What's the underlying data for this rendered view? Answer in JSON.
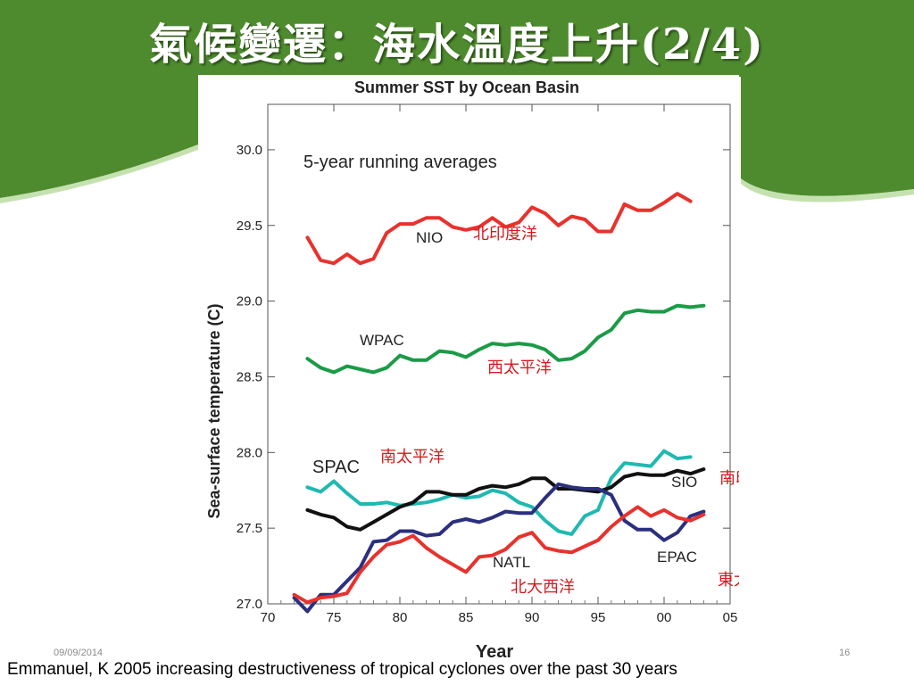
{
  "slide": {
    "title": "氣候變遷：海水溫度上升(2/4)",
    "date": "09/09/2014",
    "page_number": "16",
    "citation": "Emmanuel, K 2005 increasing destructiveness of tropical cyclones over the past 30 years",
    "colors": {
      "banner_green": "#4e8b2e",
      "title_text": "#ffffff"
    }
  },
  "chart_data": {
    "type": "line",
    "title": "Summer SST by Ocean Basin",
    "subtitle": "5-year running averages",
    "xlabel": "Year",
    "ylabel": "Sea-surface temperature (C)",
    "xlim": [
      1970,
      2005
    ],
    "ylim": [
      27.0,
      30.3
    ],
    "x_ticks": [
      1970,
      1975,
      1980,
      1985,
      1990,
      1995,
      2000,
      2005
    ],
    "x_tick_labels": [
      "70",
      "75",
      "80",
      "85",
      "90",
      "95",
      "00",
      "05"
    ],
    "y_ticks": [
      27.0,
      27.5,
      28.0,
      28.5,
      29.0,
      29.5,
      30.0
    ],
    "y_tick_labels": [
      "27.0",
      "27.5",
      "28.0",
      "28.5",
      "29.0",
      "29.5",
      "30.0"
    ],
    "grid": false,
    "series": [
      {
        "name": "NIO",
        "chinese_label": "北印度洋",
        "color": "#e8322d",
        "x": [
          1973,
          1974,
          1975,
          1976,
          1977,
          1978,
          1979,
          1980,
          1981,
          1982,
          1983,
          1984,
          1985,
          1986,
          1987,
          1988,
          1989,
          1990,
          1991,
          1992,
          1993,
          1994,
          1995,
          1996,
          1997,
          1998,
          1999,
          2000,
          2001,
          2002
        ],
        "y": [
          29.42,
          29.27,
          29.25,
          29.31,
          29.25,
          29.28,
          29.45,
          29.51,
          29.51,
          29.55,
          29.55,
          29.49,
          29.47,
          29.49,
          29.55,
          29.49,
          29.52,
          29.62,
          29.58,
          29.5,
          29.56,
          29.54,
          29.46,
          29.46,
          29.64,
          29.6,
          29.6,
          29.65,
          29.71,
          29.66
        ]
      },
      {
        "name": "WPAC",
        "chinese_label": "西太平洋",
        "color": "#1a9b46",
        "x": [
          1973,
          1974,
          1975,
          1976,
          1977,
          1978,
          1979,
          1980,
          1981,
          1982,
          1983,
          1984,
          1985,
          1986,
          1987,
          1988,
          1989,
          1990,
          1991,
          1992,
          1993,
          1994,
          1995,
          1996,
          1997,
          1998,
          1999,
          2000,
          2001,
          2002,
          2003
        ],
        "y": [
          28.62,
          28.56,
          28.53,
          28.57,
          28.55,
          28.53,
          28.56,
          28.64,
          28.61,
          28.61,
          28.67,
          28.66,
          28.63,
          28.68,
          28.72,
          28.71,
          28.72,
          28.71,
          28.68,
          28.61,
          28.62,
          28.67,
          28.76,
          28.81,
          28.92,
          28.94,
          28.93,
          28.93,
          28.97,
          28.96,
          28.97
        ]
      },
      {
        "name": "SPAC",
        "chinese_label": "南太平洋",
        "color": "#1fb9b1",
        "x": [
          1973,
          1974,
          1975,
          1976,
          1977,
          1978,
          1979,
          1980,
          1981,
          1982,
          1983,
          1984,
          1985,
          1986,
          1987,
          1988,
          1989,
          1990,
          1991,
          1992,
          1993,
          1994,
          1995,
          1996,
          1997,
          1998,
          1999,
          2000,
          2001,
          2002
        ],
        "y": [
          27.77,
          27.74,
          27.81,
          27.73,
          27.66,
          27.66,
          27.67,
          27.65,
          27.66,
          27.67,
          27.69,
          27.72,
          27.7,
          27.71,
          27.75,
          27.73,
          27.67,
          27.64,
          27.55,
          27.48,
          27.46,
          27.58,
          27.62,
          27.83,
          27.93,
          27.92,
          27.91,
          28.01,
          27.96,
          27.97
        ]
      },
      {
        "name": "SIO",
        "chinese_label": "南印度洋",
        "color": "#111111",
        "x": [
          1973,
          1974,
          1975,
          1976,
          1977,
          1978,
          1979,
          1980,
          1981,
          1982,
          1983,
          1984,
          1985,
          1986,
          1987,
          1988,
          1989,
          1990,
          1991,
          1992,
          1993,
          1994,
          1995,
          1996,
          1997,
          1998,
          1999,
          2000,
          2001,
          2002,
          2003
        ],
        "y": [
          27.62,
          27.59,
          27.57,
          27.51,
          27.49,
          27.54,
          27.59,
          27.64,
          27.67,
          27.74,
          27.74,
          27.72,
          27.72,
          27.76,
          27.78,
          27.77,
          27.79,
          27.83,
          27.83,
          27.76,
          27.76,
          27.75,
          27.74,
          27.77,
          27.84,
          27.86,
          27.85,
          27.85,
          27.88,
          27.86,
          27.89
        ]
      },
      {
        "name": "EPAC",
        "chinese_label": "東太平洋",
        "color": "#2b2f7e",
        "x": [
          1972,
          1973,
          1974,
          1975,
          1976,
          1977,
          1978,
          1979,
          1980,
          1981,
          1982,
          1983,
          1984,
          1985,
          1986,
          1987,
          1988,
          1989,
          1990,
          1991,
          1992,
          1993,
          1994,
          1995,
          1996,
          1997,
          1998,
          1999,
          2000,
          2001,
          2002,
          2003
        ],
        "y": [
          27.04,
          26.95,
          27.06,
          27.06,
          27.15,
          27.24,
          27.41,
          27.42,
          27.48,
          27.48,
          27.45,
          27.46,
          27.54,
          27.56,
          27.54,
          27.57,
          27.61,
          27.6,
          27.6,
          27.7,
          27.79,
          27.77,
          27.76,
          27.76,
          27.72,
          27.55,
          27.49,
          27.49,
          27.42,
          27.47,
          27.58,
          27.61
        ]
      },
      {
        "name": "NATL",
        "chinese_label": "北大西洋",
        "color": "#e8322d",
        "x": [
          1972,
          1973,
          1974,
          1975,
          1976,
          1977,
          1978,
          1979,
          1980,
          1981,
          1982,
          1983,
          1984,
          1985,
          1986,
          1987,
          1988,
          1989,
          1990,
          1991,
          1992,
          1993,
          1994,
          1995,
          1996,
          1997,
          1998,
          1999,
          2000,
          2001,
          2002,
          2003
        ],
        "y": [
          27.06,
          27.01,
          27.04,
          27.05,
          27.07,
          27.21,
          27.31,
          27.39,
          27.41,
          27.45,
          27.37,
          27.31,
          27.26,
          27.21,
          27.31,
          27.32,
          27.36,
          27.44,
          27.47,
          27.37,
          27.35,
          27.34,
          27.38,
          27.42,
          27.51,
          27.58,
          27.64,
          27.58,
          27.62,
          27.57,
          27.55,
          27.59
        ]
      }
    ]
  }
}
